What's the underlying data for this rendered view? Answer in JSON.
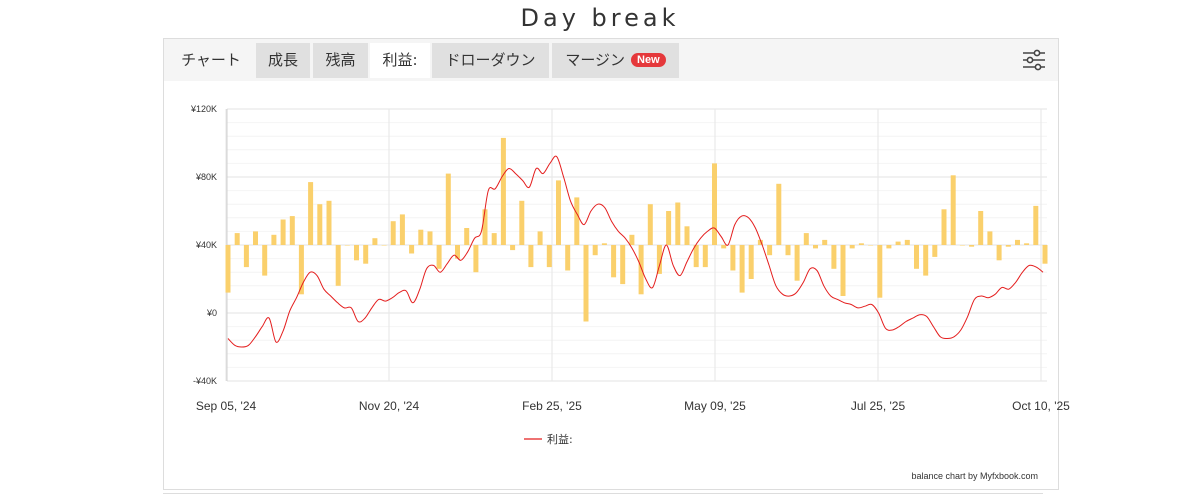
{
  "page": {
    "title": "Day break"
  },
  "tabs": [
    {
      "label": "チャート",
      "style": "plain"
    },
    {
      "label": "成長",
      "style": "gray"
    },
    {
      "label": "残高",
      "style": "gray"
    },
    {
      "label": "利益:",
      "style": "active"
    },
    {
      "label": "ドローダウン",
      "style": "gray"
    },
    {
      "label": "マージン",
      "style": "gray",
      "badge": "New"
    }
  ],
  "icons": {
    "settings": "sliders-icon"
  },
  "credit": "balance chart by Myfxbook.com",
  "colors": {
    "bar": "#fad06c",
    "line": "#e41e1e",
    "badge": "#e5383b"
  },
  "chart_data": {
    "type": "bar",
    "title": "",
    "ylim": [
      -40000,
      120000
    ],
    "y_ticks": [
      -40000,
      0,
      40000,
      80000,
      120000
    ],
    "y_tick_labels": [
      "-¥40K",
      "¥0",
      "¥40K",
      "¥80K",
      "¥120K"
    ],
    "x_tick_labels": [
      "Sep 05, '24",
      "Nov 20, '24",
      "Feb 25, '25",
      "May 09, '25",
      "Jul 25, '25",
      "Oct 10, '25"
    ],
    "grid": true,
    "legend": {
      "position": "bottom-center",
      "label": "利益:"
    },
    "baseline": 40000,
    "series": [
      {
        "name": "利益:",
        "type": "line",
        "color": "#e41e1e",
        "values": [
          -15000,
          -19000,
          -20000,
          -19000,
          -14000,
          -8000,
          -3000,
          -17000,
          -11000,
          1000,
          9000,
          18000,
          24000,
          22000,
          14000,
          10000,
          6000,
          3000,
          3000,
          -5000,
          -3000,
          3000,
          8000,
          7000,
          9000,
          12000,
          13000,
          6000,
          14000,
          26000,
          28000,
          24000,
          29000,
          34000,
          31000,
          36000,
          44000,
          48000,
          72000,
          73000,
          80000,
          85000,
          82000,
          78000,
          74000,
          85000,
          82000,
          88000,
          92000,
          80000,
          66000,
          58000,
          52000,
          60000,
          64000,
          62000,
          54000,
          48000,
          44000,
          38000,
          30000,
          20000,
          15000,
          28000,
          40000,
          28000,
          22000,
          30000,
          38000,
          44000,
          48000,
          50000,
          45000,
          40000,
          52000,
          57000,
          56000,
          50000,
          40000,
          28000,
          16000,
          11000,
          10000,
          12000,
          18000,
          26000,
          25000,
          16000,
          10000,
          8000,
          6000,
          5000,
          3000,
          4000,
          5000,
          0,
          -9000,
          -10000,
          -8000,
          -5000,
          -3000,
          -1000,
          -2000,
          -8000,
          -14000,
          -15000,
          -14000,
          -10000,
          -2000,
          8000,
          10000,
          9000,
          11000,
          15000,
          14000,
          18000,
          24000,
          28000,
          27000,
          24000
        ]
      },
      {
        "name": "",
        "type": "bar",
        "color": "#fad06c",
        "values": [
          12000,
          47000,
          27000,
          48000,
          22000,
          46000,
          55000,
          57000,
          11000,
          77000,
          64000,
          66000,
          16000,
          40000,
          31000,
          29000,
          44000,
          40000,
          54000,
          58000,
          35000,
          49000,
          48000,
          26000,
          82000,
          32000,
          50000,
          24000,
          61000,
          47000,
          103000,
          37000,
          66000,
          27000,
          48000,
          27000,
          78000,
          25000,
          68000,
          -5000,
          34000,
          41000,
          21000,
          17000,
          46000,
          11000,
          64000,
          23000,
          60000,
          65000,
          51000,
          27000,
          27000,
          88000,
          38000,
          25000,
          12000,
          20000,
          43000,
          34000,
          76000,
          34000,
          19000,
          47000,
          38000,
          43000,
          26000,
          10000,
          38000,
          41000,
          40000,
          9000,
          38000,
          42000,
          43000,
          26000,
          22000,
          33000,
          61000,
          81000,
          40000,
          39000,
          60000,
          48000,
          31000,
          39000,
          43000,
          41000,
          63000,
          29000
        ]
      }
    ]
  }
}
